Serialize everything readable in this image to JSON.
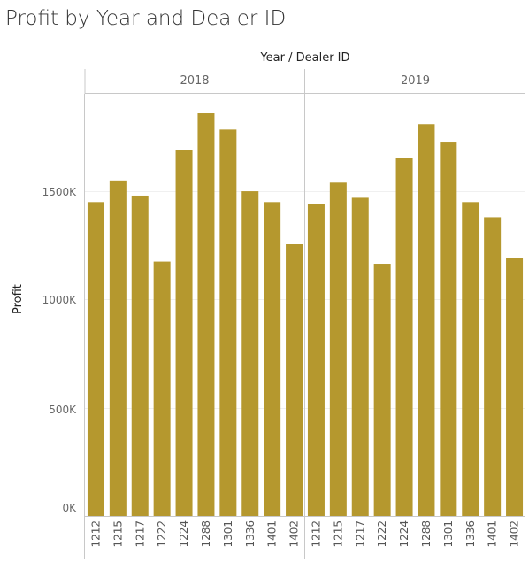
{
  "chart_data": {
    "type": "bar",
    "title": "Profit by Year and Dealer ID",
    "header": "Year  /  Dealer ID",
    "ylabel": "Profit",
    "ylim": [
      0,
      1950000
    ],
    "yticks": [
      {
        "value": 0,
        "label": "0K"
      },
      {
        "value": 500000,
        "label": "500K"
      },
      {
        "value": 1000000,
        "label": "1000K"
      },
      {
        "value": 1500000,
        "label": "1500K"
      }
    ],
    "color": "#b5982e",
    "panels": [
      {
        "year": "2018",
        "categories": [
          "1212",
          "1215",
          "1217",
          "1222",
          "1224",
          "1288",
          "1301",
          "1336",
          "1401",
          "1402"
        ],
        "values": [
          1450000,
          1550000,
          1480000,
          1175000,
          1690000,
          1860000,
          1785000,
          1500000,
          1450000,
          1255000
        ]
      },
      {
        "year": "2019",
        "categories": [
          "1212",
          "1215",
          "1217",
          "1222",
          "1224",
          "1288",
          "1301",
          "1336",
          "1401",
          "1402"
        ],
        "values": [
          1440000,
          1540000,
          1470000,
          1165000,
          1655000,
          1810000,
          1725000,
          1450000,
          1380000,
          1190000
        ]
      }
    ]
  }
}
